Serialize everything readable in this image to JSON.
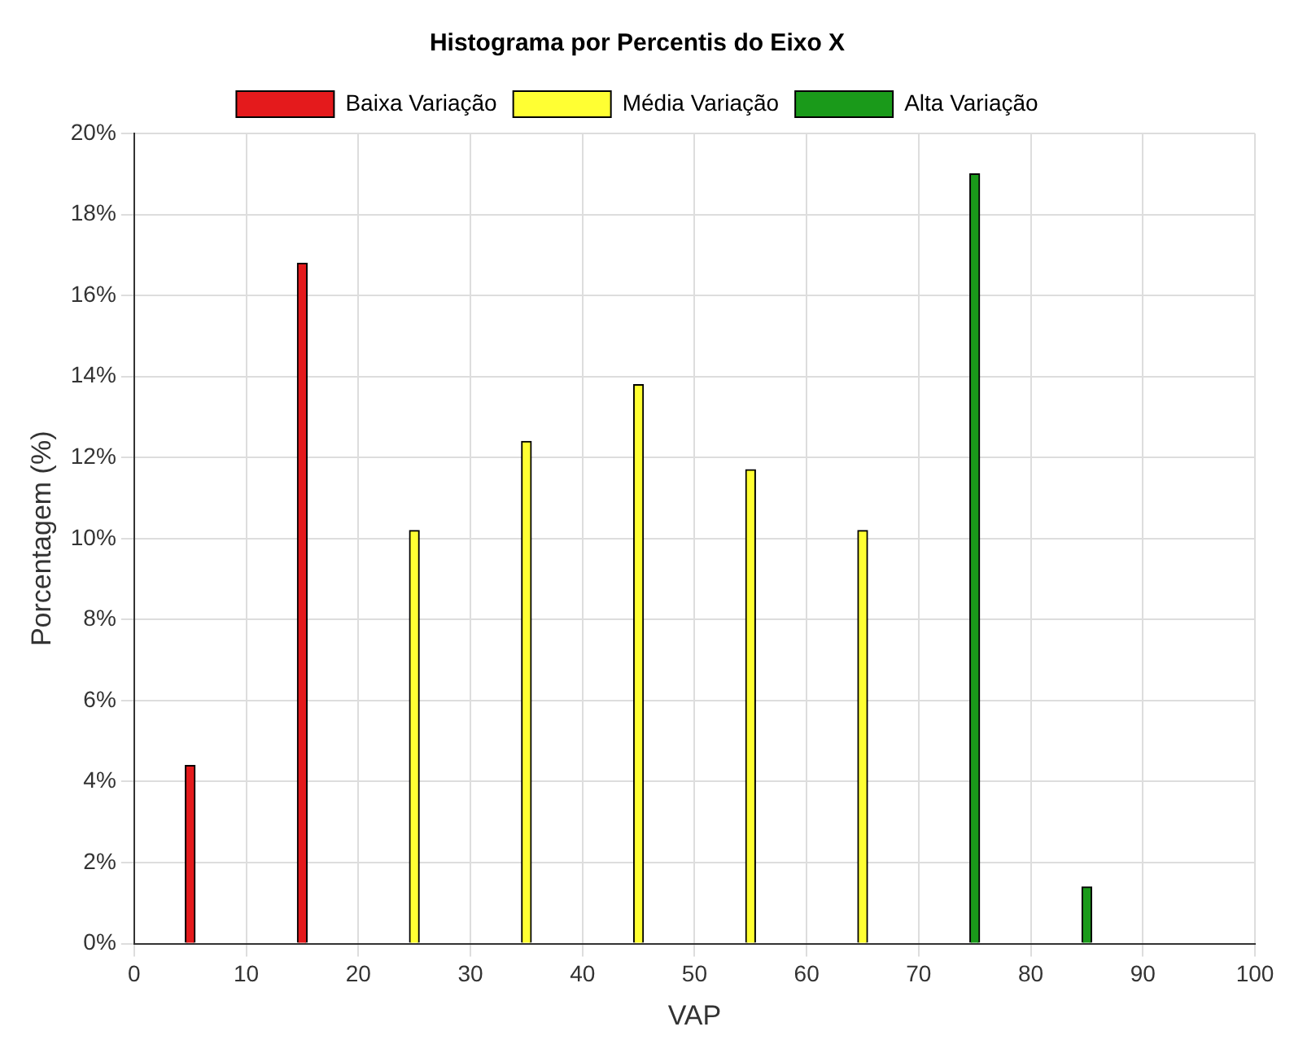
{
  "chart_data": {
    "type": "bar",
    "title": "Histograma por Percentis do Eixo X",
    "xlabel": "VAP",
    "ylabel": "Porcentagem (%)",
    "series": [
      {
        "name": "Baixa Variação",
        "color": "#e41a1c",
        "x": [
          5,
          15
        ],
        "values": [
          4.4,
          16.8
        ]
      },
      {
        "name": "Média Variação",
        "color": "#ffff33",
        "x": [
          25,
          35,
          45,
          55,
          65
        ],
        "values": [
          10.2,
          12.4,
          13.8,
          11.7,
          10.2
        ]
      },
      {
        "name": "Alta Variação",
        "color": "#1a9a1a",
        "x": [
          75,
          85,
          95
        ],
        "values": [
          19.0,
          1.4,
          0
        ]
      }
    ],
    "xlim": [
      0,
      100
    ],
    "xticks": [
      0,
      10,
      20,
      30,
      40,
      50,
      60,
      70,
      80,
      90,
      100
    ],
    "ylim": [
      0,
      20
    ],
    "yticks": [
      {
        "value": 0,
        "label": "0%"
      },
      {
        "value": 2,
        "label": "2%"
      },
      {
        "value": 4,
        "label": "4%"
      },
      {
        "value": 6,
        "label": "6%"
      },
      {
        "value": 8,
        "label": "8%"
      },
      {
        "value": 10,
        "label": "10%"
      },
      {
        "value": 12,
        "label": "12%"
      },
      {
        "value": 14,
        "label": "14%"
      },
      {
        "value": 16,
        "label": "16%"
      },
      {
        "value": 18,
        "label": "18%"
      },
      {
        "value": 20,
        "label": "20%"
      }
    ],
    "grid": true,
    "legend": "top"
  }
}
